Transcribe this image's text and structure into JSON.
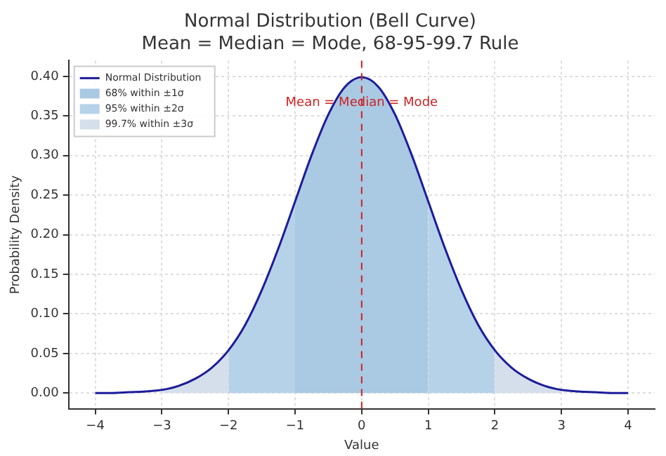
{
  "chart_data": {
    "type": "line",
    "title": "Normal Distribution (Bell Curve)",
    "subtitle": "Mean = Median = Mode, 68-95-99.7 Rule",
    "xlabel": "Value",
    "ylabel": "Probability Density",
    "x": [
      -4,
      -3.75,
      -3.5,
      -3.25,
      -3,
      -2.75,
      -2.5,
      -2.25,
      -2,
      -1.75,
      -1.5,
      -1.25,
      -1,
      -0.75,
      -0.5,
      -0.25,
      0,
      0.25,
      0.5,
      0.75,
      1,
      1.25,
      1.5,
      1.75,
      2,
      2.25,
      2.5,
      2.75,
      3,
      3.25,
      3.5,
      3.75,
      4
    ],
    "series": [
      {
        "name": "Normal Distribution",
        "type": "line",
        "color": "#1c1c9a",
        "values": [
          0.0,
          0.0,
          0.001,
          0.002,
          0.004,
          0.009,
          0.018,
          0.032,
          0.054,
          0.086,
          0.13,
          0.183,
          0.242,
          0.301,
          0.352,
          0.387,
          0.399,
          0.387,
          0.352,
          0.301,
          0.242,
          0.183,
          0.13,
          0.086,
          0.054,
          0.032,
          0.018,
          0.009,
          0.004,
          0.002,
          0.001,
          0.0,
          0.0
        ]
      },
      {
        "name": "68% within ±1σ",
        "type": "area",
        "color": "#aac9e3",
        "x": [
          -1,
          -0.75,
          -0.5,
          -0.25,
          0,
          0.25,
          0.5,
          0.75,
          1
        ],
        "values": [
          0.242,
          0.301,
          0.352,
          0.387,
          0.399,
          0.387,
          0.352,
          0.301,
          0.242
        ]
      },
      {
        "name": "95% within ±2σ",
        "type": "area",
        "color": "#b6d2e9",
        "x": [
          -2,
          -1.75,
          -1.5,
          -1.25,
          -1,
          0,
          1,
          1.25,
          1.5,
          1.75,
          2
        ],
        "values": [
          0.054,
          0.086,
          0.13,
          0.183,
          0.242,
          null,
          0.242,
          0.183,
          0.13,
          0.086,
          0.054
        ]
      },
      {
        "name": "99.7% within ±3σ",
        "type": "area",
        "color": "#d5dfeb",
        "x": [
          -3,
          -2.75,
          -2.5,
          -2.25,
          -2,
          0,
          2,
          2.25,
          2.5,
          2.75,
          3
        ],
        "values": [
          0.004,
          0.009,
          0.018,
          0.032,
          0.054,
          null,
          0.054,
          0.032,
          0.018,
          0.009,
          0.004
        ]
      }
    ],
    "xlim": [
      -4.4,
      4.4
    ],
    "xticks": [
      -4,
      -3,
      -2,
      -1,
      0,
      1,
      2,
      3,
      4
    ],
    "ylim": [
      -0.02,
      0.42
    ],
    "yticks": [
      {
        "value": 0,
        "label": "0.00"
      },
      {
        "value": 0.05,
        "label": "0.05"
      },
      {
        "value": 0.1,
        "label": "0.10"
      },
      {
        "value": 0.15,
        "label": "0.15"
      },
      {
        "value": 0.2,
        "label": "0.20"
      },
      {
        "value": 0.25,
        "label": "0.25"
      },
      {
        "value": 0.3,
        "label": "0.30"
      },
      {
        "value": 0.35,
        "label": "0.35"
      },
      {
        "value": 0.4,
        "label": "0.40"
      }
    ],
    "ref_lines": [
      {
        "axis": "x",
        "value": 0,
        "label": "Mean = Median = Mode",
        "color": "#cc2222",
        "line_style": "dashed"
      }
    ],
    "grid": true,
    "legend": "top left",
    "marker": "none",
    "line_style": "solid"
  }
}
